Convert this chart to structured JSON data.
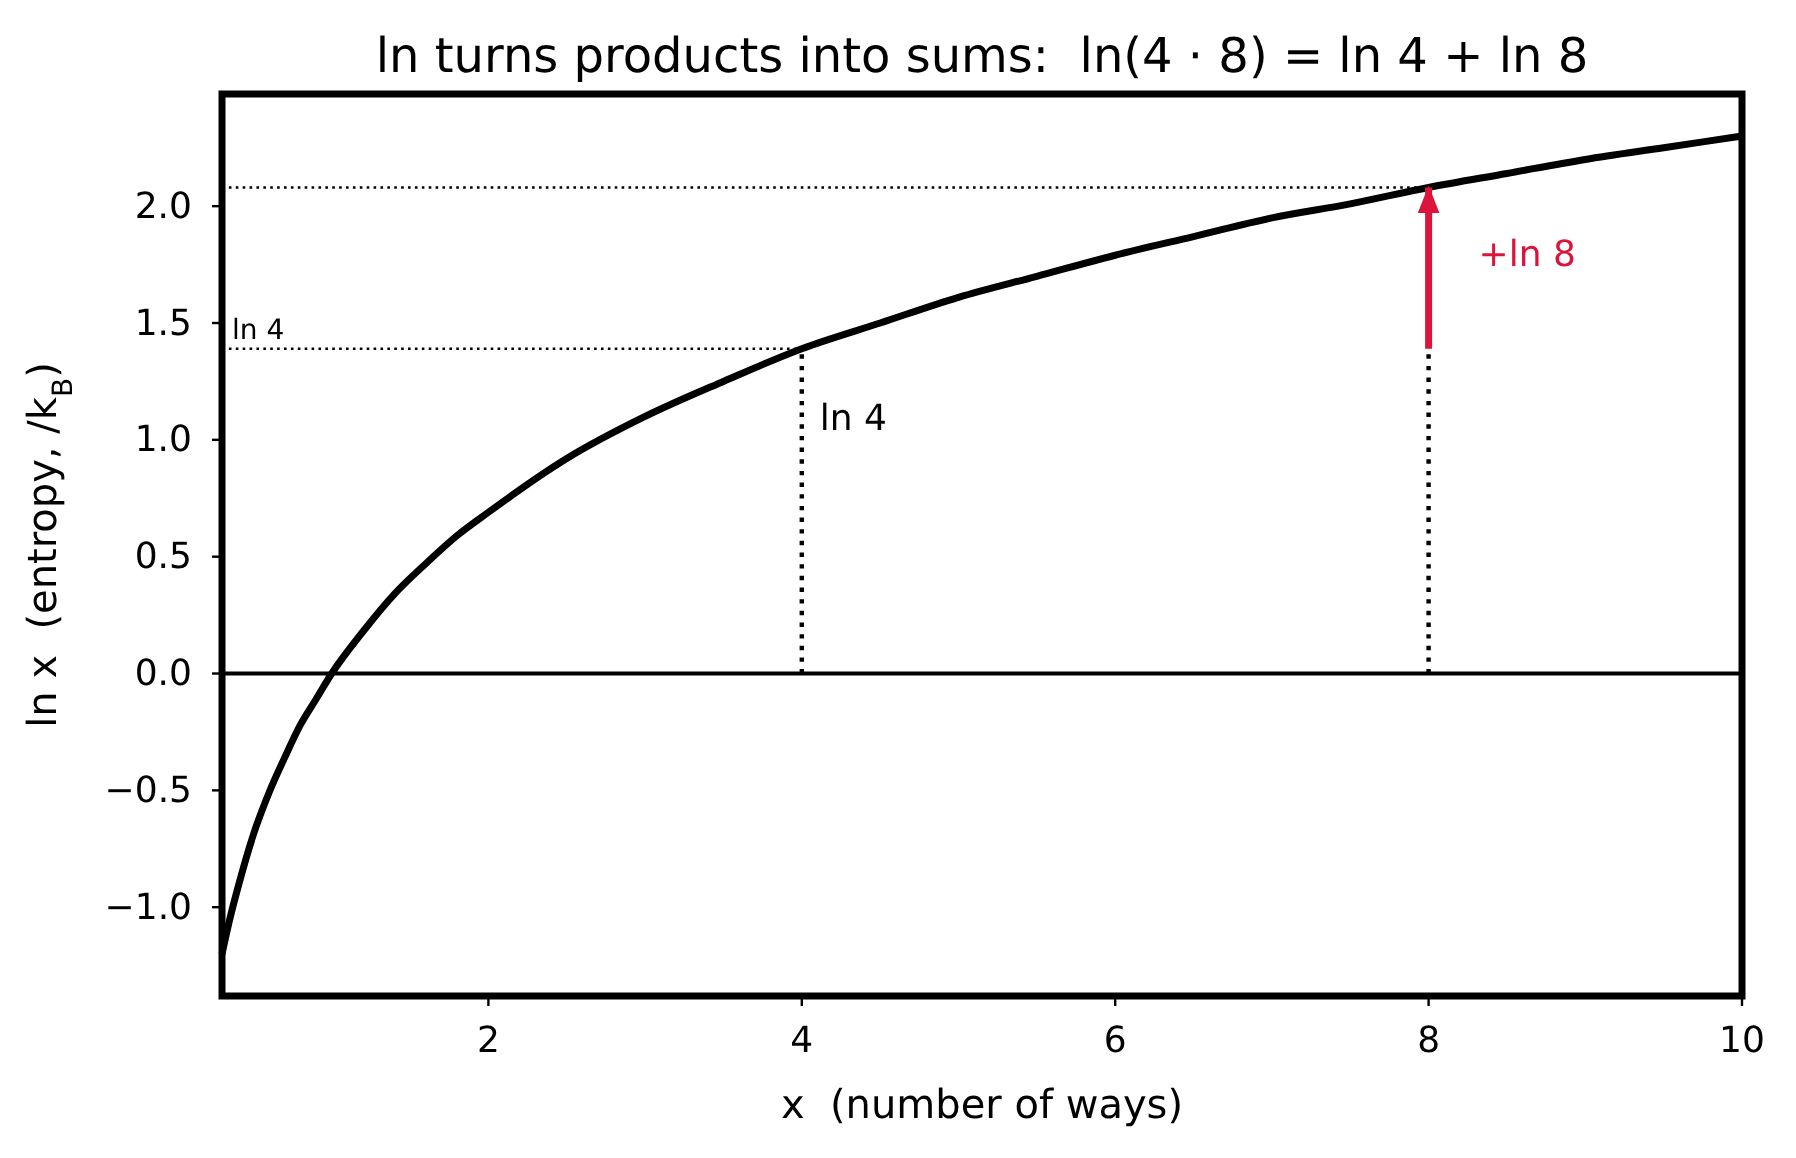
{
  "chart_data": {
    "type": "line",
    "title": "ln turns products into sums:  ln(4 · 8) = ln 4 + ln 8",
    "xlabel": "x  (number of ways)",
    "ylabel": "ln x  (entropy, /k$_{B}$)",
    "xlim": [
      0.3,
      10
    ],
    "ylim": [
      -1.38,
      2.48
    ],
    "xticks": [
      2,
      4,
      6,
      8,
      10
    ],
    "yticks": [
      {
        "value": -1,
        "label": "−1.0"
      },
      {
        "value": -0.5,
        "label": "−0.5"
      },
      {
        "value": 0,
        "label": "0.0"
      },
      {
        "value": 0.5,
        "label": "0.5"
      },
      {
        "value": 1,
        "label": "1.0"
      },
      {
        "value": 1.5,
        "label": "1.5"
      },
      {
        "value": 2,
        "label": "2.0"
      }
    ],
    "line_style": "solid",
    "series": [
      {
        "color": "#000000",
        "line_style": "dotted",
        "x": [
          0.3,
          4
        ],
        "values": [
          1.39,
          1.39
        ]
      },
      {
        "color": "#000000",
        "line_style": "dotted",
        "x": [
          0.3,
          8
        ],
        "values": [
          2.08,
          2.08
        ]
      },
      {
        "color": "#000000",
        "line_style": "dotted",
        "x": [
          4,
          4
        ],
        "values": [
          0,
          1.39
        ]
      },
      {
        "color": "#000000",
        "line_style": "dotted",
        "x": [
          8,
          8
        ],
        "values": [
          0,
          2.08
        ]
      },
      {
        "color": "#000000",
        "x": [
          0.3,
          0.35,
          0.4,
          0.5,
          0.6,
          0.7,
          0.8,
          0.9,
          1.0,
          1.2,
          1.4,
          1.6,
          1.8,
          2,
          2.5,
          3,
          3.5,
          4,
          4.5,
          5,
          5.5,
          6,
          6.5,
          7,
          7.5,
          8,
          8.5,
          9,
          9.5,
          10
        ],
        "values": [
          -1.2,
          -1.05,
          -0.92,
          -0.69,
          -0.51,
          -0.36,
          -0.22,
          -0.11,
          0.0,
          0.18,
          0.34,
          0.47,
          0.59,
          0.69,
          0.92,
          1.1,
          1.25,
          1.39,
          1.5,
          1.61,
          1.7,
          1.79,
          1.87,
          1.95,
          2.01,
          2.08,
          2.14,
          2.2,
          2.25,
          2.3
        ]
      },
      {
        "name": "+ln 8",
        "color": "#dc143c",
        "x": [
          8,
          8
        ],
        "values": [
          1.39,
          2.08
        ]
      }
    ],
    "ref_lines": [
      {
        "axis": "y",
        "value": 0,
        "color": "#000000",
        "line_style": "solid"
      }
    ],
    "annotations": [
      {
        "text": "ln 4",
        "x": 0.3,
        "y": 1.39
      },
      {
        "text": "ln 4",
        "x": 4,
        "y": 1.0
      }
    ]
  }
}
